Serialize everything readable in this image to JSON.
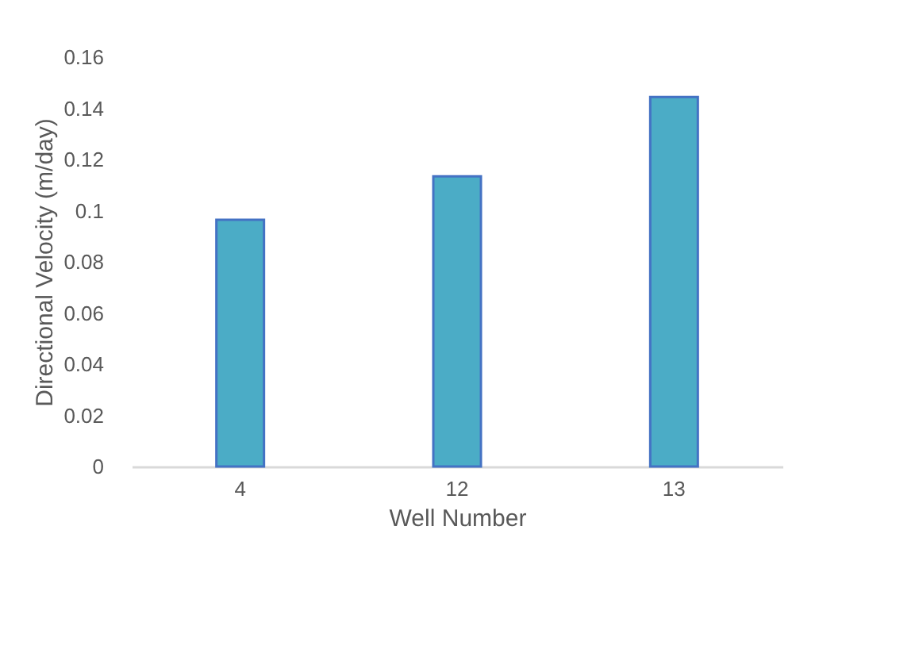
{
  "chart_data": {
    "type": "bar",
    "xlabel": "Well Number",
    "ylabel": "Directional Velocity (m/day)",
    "categories": [
      "4",
      "12",
      "13"
    ],
    "series": [
      {
        "color": "#4bacc6",
        "values": [
          0.0964,
          0.1134,
          0.1444
        ]
      }
    ],
    "ylim": [
      0,
      0.16
    ],
    "yticks": [
      0,
      0.02,
      0.04,
      0.06,
      0.08,
      0.1,
      0.12,
      0.14,
      0.16
    ],
    "grid": false
  }
}
